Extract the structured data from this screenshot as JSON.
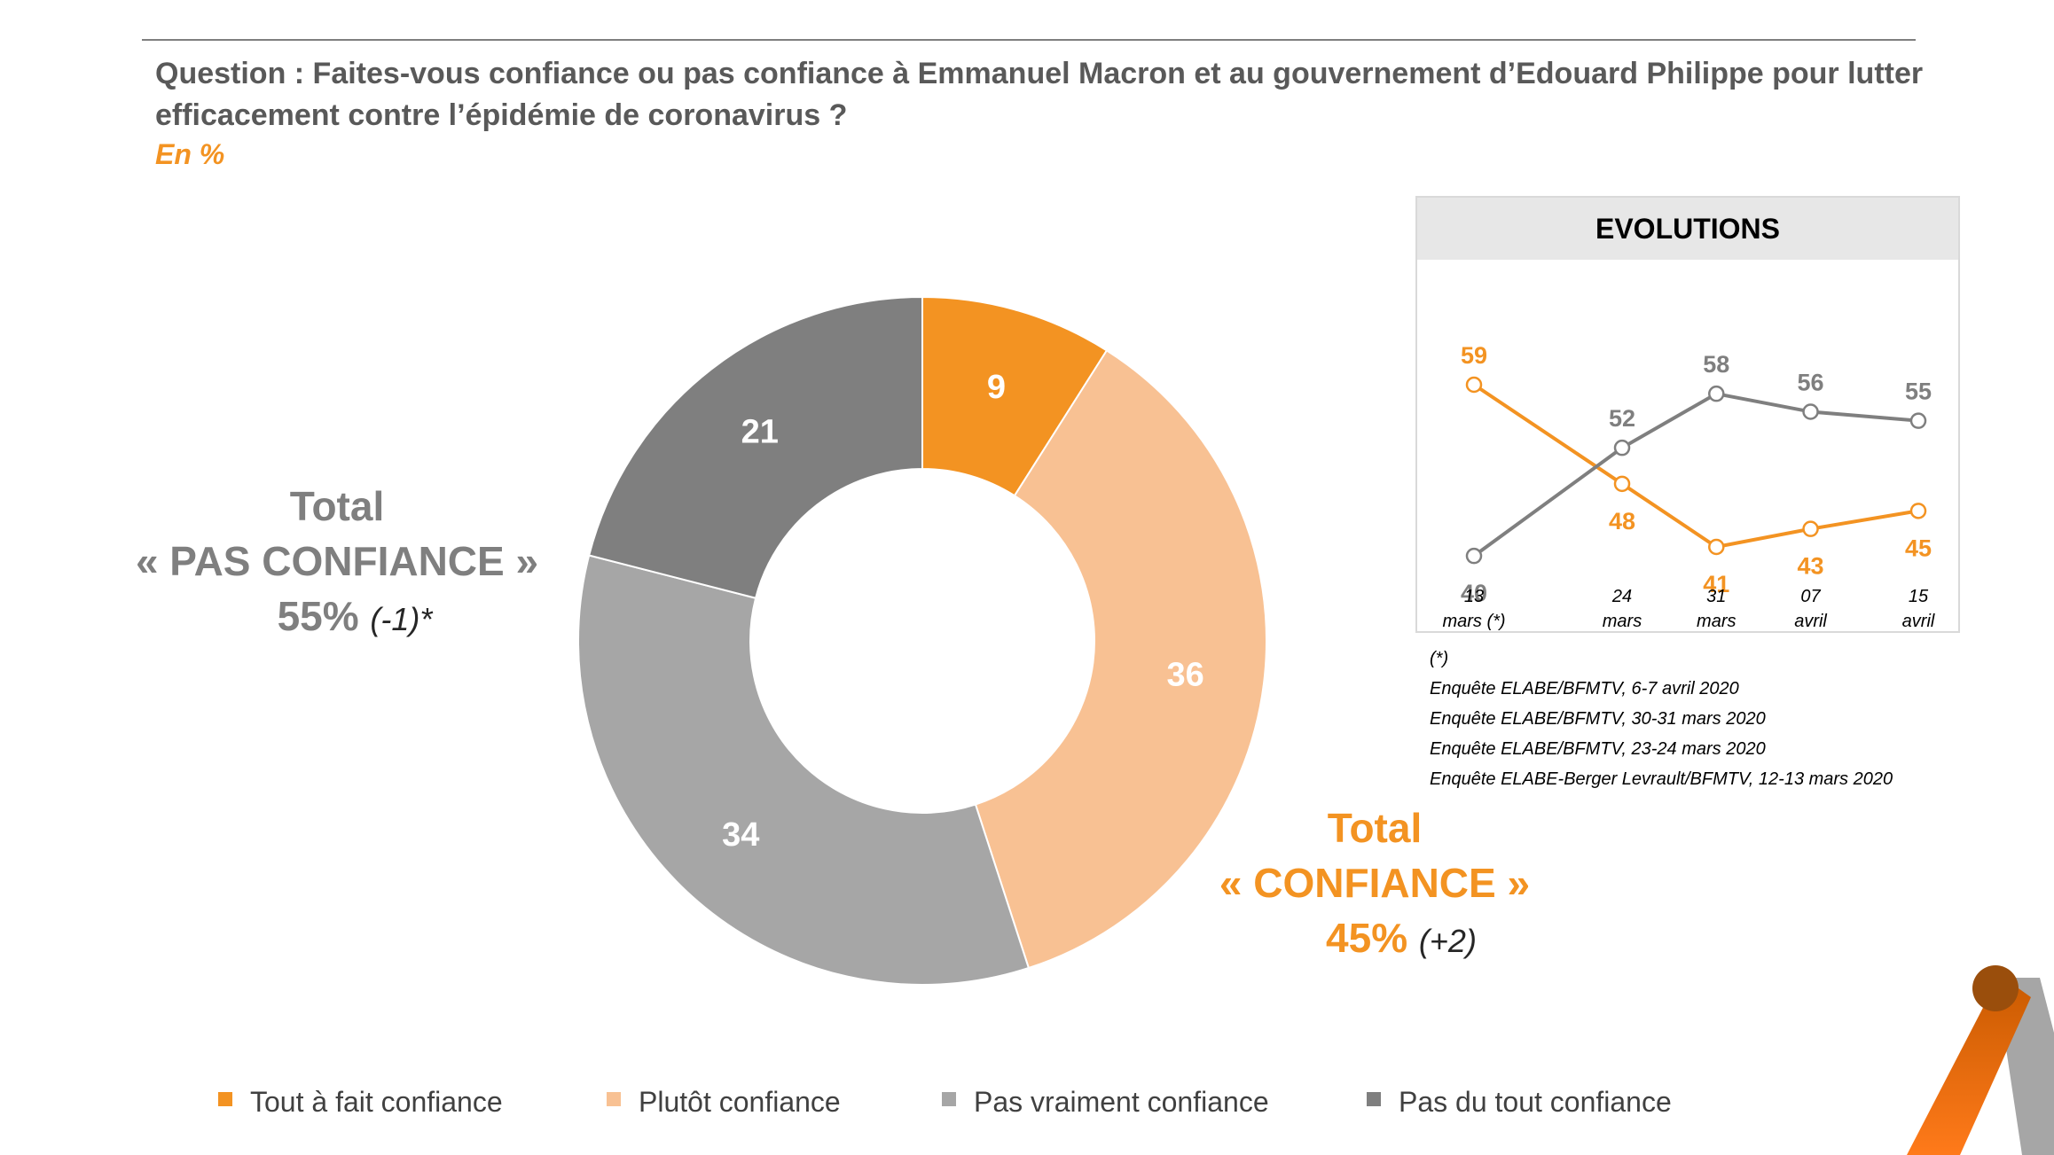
{
  "question": "Question : Faites-vous confiance ou pas confiance à Emmanuel Macron et au gouvernement d’Edouard Philippe pour lutter efficacement contre l’épidémie de coronavirus ?",
  "unit": "En %",
  "totals": {
    "no": {
      "line1": "Total",
      "line2": "« PAS CONFIANCE »",
      "pct": "55%",
      "change": "(-1)*"
    },
    "yes": {
      "line1": "Total",
      "line2": "« CONFIANCE »",
      "pct": "45%",
      "change": "(+2)"
    }
  },
  "evolutions_title": "EVOLUTIONS",
  "notes": [
    "(*)",
    "Enquête ELABE/BFMTV, 6-7 avril 2020",
    "Enquête ELABE/BFMTV, 30-31 mars 2020",
    "Enquête ELABE/BFMTV, 23-24 mars 2020",
    "Enquête ELABE-Berger Levrault/BFMTV, 12-13 mars 2020"
  ],
  "chart_data": [
    {
      "type": "pie",
      "donut": true,
      "categories": [
        "Tout à fait confiance",
        "Plutôt confiance",
        "Pas vraiment confiance",
        "Pas du tout confiance"
      ],
      "values": [
        9,
        36,
        34,
        21
      ],
      "colors": [
        "#f39322",
        "#f8c193",
        "#a6a6a6",
        "#7f7f7f"
      ],
      "legend_position": "bottom"
    },
    {
      "type": "line",
      "x": [
        [
          "13",
          "mars (*)"
        ],
        [
          "24",
          "mars"
        ],
        [
          "31",
          "mars"
        ],
        [
          "07",
          "avril"
        ],
        [
          "15",
          "avril"
        ]
      ],
      "x_days": [
        0,
        11,
        18,
        25,
        33
      ],
      "series": [
        {
          "values": [
            59,
            48,
            41,
            43,
            45
          ],
          "color": "#f39322"
        },
        {
          "values": [
            40,
            52,
            58,
            56,
            55
          ],
          "color": "#7f7f7f"
        }
      ],
      "ylim": [
        35,
        65
      ],
      "grid": false
    }
  ]
}
